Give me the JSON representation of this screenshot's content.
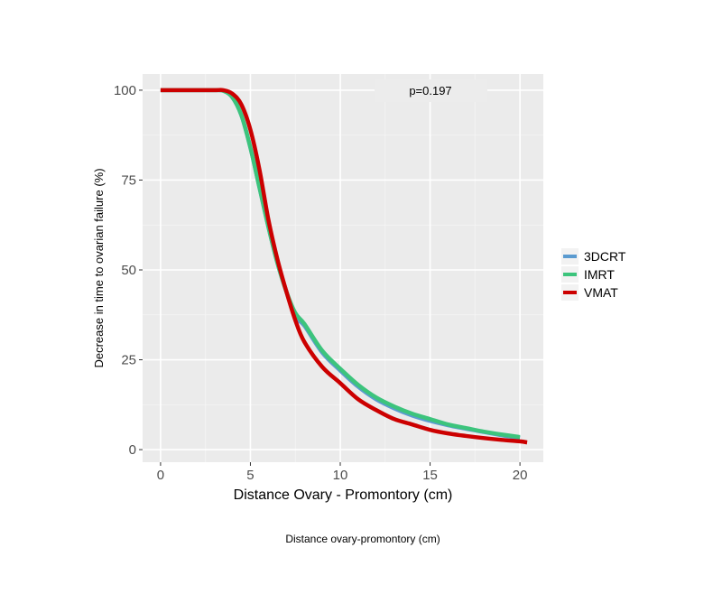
{
  "chart_data": {
    "type": "line",
    "title": "",
    "xlabel": "Distance Ovary - Promontory (cm)",
    "ylabel": "Decrease in time to ovarian failure (%)",
    "caption": "Distance ovary-promontory (cm)",
    "annotation": "p=0.197",
    "xlim": [
      -1,
      21.3
    ],
    "ylim": [
      -3.5,
      104.5
    ],
    "xticks": [
      0,
      5,
      10,
      15,
      20
    ],
    "xtick_labels": [
      "0",
      "5",
      "10",
      "15",
      "20"
    ],
    "yticks": [
      0,
      25,
      50,
      75,
      100
    ],
    "ytick_labels": [
      "0",
      "25",
      "50",
      "75",
      "100"
    ],
    "grid": true,
    "legend_position": "right",
    "series": [
      {
        "name": "3DCRT",
        "color": "#5b9bd0",
        "x": [
          0,
          1,
          2,
          3,
          3.5,
          4,
          4.5,
          5,
          5.5,
          6,
          6.5,
          7,
          7.5,
          8,
          9,
          10,
          11,
          12,
          13,
          14,
          15,
          16,
          17,
          18,
          19,
          20
        ],
        "y": [
          100,
          100,
          100,
          100,
          99.8,
          98,
          93,
          84,
          73,
          62,
          52,
          44,
          37,
          34.5,
          27,
          22,
          17.5,
          14,
          11.5,
          9.5,
          8,
          6.8,
          5.8,
          4.9,
          4,
          3.2
        ]
      },
      {
        "name": "IMRT",
        "color": "#3cc47c",
        "x": [
          0,
          1,
          2,
          3,
          3.5,
          4,
          4.5,
          5,
          5.5,
          6,
          6.5,
          7,
          7.5,
          8,
          9,
          10,
          11,
          12,
          13,
          14,
          15,
          16,
          17,
          18,
          19,
          20
        ],
        "y": [
          100,
          100,
          100,
          100,
          99.8,
          98,
          93,
          84,
          73,
          62,
          52,
          44,
          38,
          35,
          27.5,
          22.5,
          18,
          14.5,
          12,
          10,
          8.5,
          7,
          6,
          5,
          4.2,
          3.5
        ]
      },
      {
        "name": "VMAT",
        "color": "#cc0000",
        "x": [
          0,
          1,
          2,
          3,
          3.5,
          4,
          4.5,
          5,
          5.5,
          6,
          6.5,
          7,
          7.5,
          8,
          9,
          10,
          11,
          12,
          13,
          14,
          15,
          16,
          17,
          18,
          19,
          20,
          20.4
        ],
        "y": [
          100,
          100,
          100,
          100,
          100,
          99,
          96,
          89,
          78,
          64,
          53,
          44,
          36,
          30,
          23,
          18.5,
          14,
          11,
          8.5,
          7,
          5.5,
          4.5,
          3.8,
          3.2,
          2.7,
          2.3,
          2
        ]
      }
    ]
  }
}
